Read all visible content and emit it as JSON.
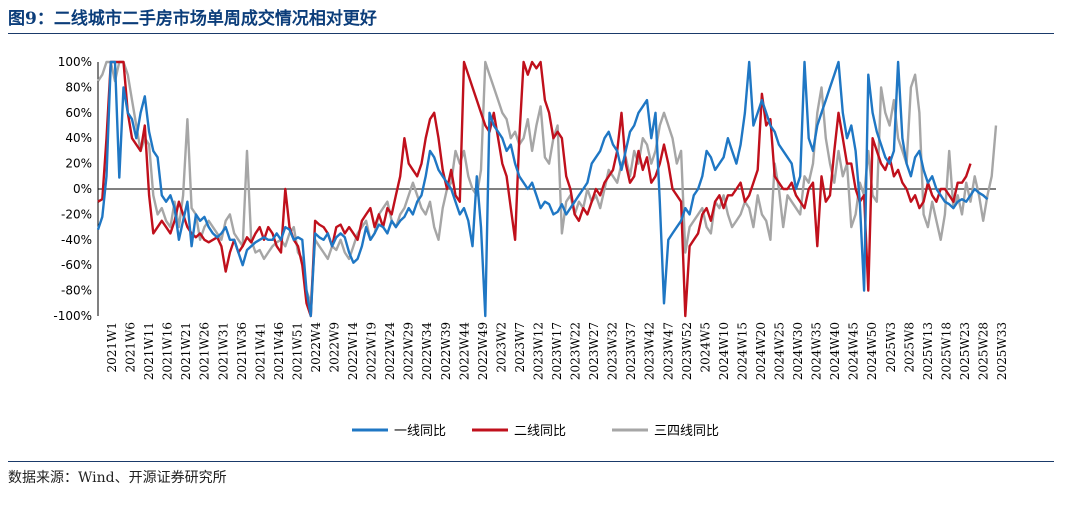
{
  "title": "图9：二线城市二手房市场单周成交情况相对更好",
  "source": "数据来源：Wind、开源证券研究所",
  "chart_data": {
    "type": "line",
    "ylim": [
      -100,
      100
    ],
    "yticks": [
      -100,
      -80,
      -60,
      -40,
      -20,
      0,
      20,
      40,
      60,
      80,
      100
    ],
    "ytick_labels": [
      "-100%",
      "-80%",
      "-60%",
      "-40%",
      "-20%",
      "0%",
      "20%",
      "40%",
      "60%",
      "80%",
      "100%"
    ],
    "xtick_labels": [
      "2021W1",
      "2021W6",
      "2021W11",
      "2021W16",
      "2021W21",
      "2021W26",
      "2021W31",
      "2021W36",
      "2021W41",
      "2021W46",
      "2021W51",
      "2022W4",
      "2022W9",
      "2022W14",
      "2022W19",
      "2022W24",
      "2022W29",
      "2022W34",
      "2022W39",
      "2022W44",
      "2022W49",
      "2023W2",
      "2023W7",
      "2023W12",
      "2023W17",
      "2023W22",
      "2023W27",
      "2023W32",
      "2023W37",
      "2023W42",
      "2023W47",
      "2023W52",
      "2024W5",
      "2024W10",
      "2024W15",
      "2024W20",
      "2024W25",
      "2024W30",
      "2024W35",
      "2024W40",
      "2024W45",
      "2024W50",
      "2025W3",
      "2025W8",
      "2025W13",
      "2025W18",
      "2025W23",
      "2025W28",
      "2025W33"
    ],
    "legend_position": "bottom",
    "series": [
      {
        "name": "一线同比",
        "color": "#1f77c4",
        "values": [
          -32,
          -22,
          10,
          100,
          100,
          9,
          80,
          60,
          55,
          40,
          60,
          73,
          45,
          30,
          25,
          -5,
          -10,
          -5,
          -15,
          -40,
          -25,
          -10,
          -45,
          -20,
          -25,
          -22,
          -30,
          -35,
          -38,
          -35,
          -30,
          -40,
          -40,
          -50,
          -60,
          -48,
          -45,
          -42,
          -40,
          -38,
          -40,
          -40,
          -35,
          -40,
          -30,
          -32,
          -40,
          -38,
          -40,
          -80,
          -100,
          -35,
          -38,
          -40,
          -35,
          -45,
          -38,
          -35,
          -38,
          -50,
          -58,
          -55,
          -45,
          -30,
          -40,
          -35,
          -28,
          -30,
          -35,
          -25,
          -30,
          -25,
          -22,
          -15,
          -20,
          -10,
          -5,
          10,
          30,
          25,
          15,
          10,
          5,
          0,
          -10,
          -20,
          -15,
          -25,
          -45,
          10,
          -30,
          -100,
          60,
          50,
          45,
          40,
          30,
          35,
          20,
          10,
          5,
          0,
          5,
          -5,
          -15,
          -10,
          -12,
          -20,
          -18,
          -12,
          -20,
          -15,
          -10,
          -5,
          0,
          5,
          20,
          25,
          30,
          40,
          45,
          35,
          30,
          15,
          30,
          45,
          50,
          60,
          65,
          70,
          40,
          60,
          -10,
          -90,
          -40,
          -35,
          -30,
          -25,
          -15,
          -20,
          -5,
          0,
          10,
          30,
          25,
          15,
          20,
          25,
          40,
          30,
          20,
          35,
          60,
          100,
          50,
          60,
          70,
          60,
          50,
          45,
          35,
          30,
          25,
          20,
          0,
          10,
          100,
          40,
          30,
          50,
          60,
          70,
          80,
          90,
          100,
          60,
          40,
          50,
          30,
          -10,
          -80,
          90,
          60,
          45,
          35,
          25,
          20,
          30,
          100,
          40,
          20,
          10,
          25,
          30,
          15,
          5,
          10,
          0,
          -5,
          -10,
          -12,
          -15,
          -10,
          -8,
          -10,
          -5,
          0,
          -3,
          -5,
          -8
        ],
        "values_note": ""
      },
      {
        "name": "二线同比",
        "color": "#c0101c",
        "values": [
          -10,
          -8,
          40,
          100,
          100,
          100,
          100,
          60,
          40,
          35,
          30,
          50,
          -5,
          -35,
          -30,
          -25,
          -30,
          -35,
          -25,
          -10,
          -20,
          -30,
          -35,
          -38,
          -35,
          -40,
          -42,
          -40,
          -38,
          -45,
          -65,
          -50,
          -40,
          -50,
          -45,
          -38,
          -42,
          -35,
          -30,
          -40,
          -30,
          -35,
          -45,
          -50,
          0,
          -30,
          -40,
          -45,
          -60,
          -90,
          -100,
          -25,
          -28,
          -30,
          -35,
          -45,
          -30,
          -28,
          -35,
          -30,
          -35,
          -40,
          -25,
          -20,
          -15,
          -30,
          -20,
          -30,
          -15,
          -20,
          -5,
          10,
          40,
          20,
          15,
          10,
          20,
          40,
          55,
          60,
          40,
          15,
          0,
          15,
          -5,
          -10,
          100,
          90,
          80,
          70,
          60,
          50,
          45,
          60,
          40,
          20,
          10,
          -15,
          -40,
          40,
          100,
          90,
          100,
          95,
          100,
          70,
          60,
          40,
          45,
          40,
          10,
          0,
          -20,
          -25,
          -15,
          -20,
          -10,
          0,
          -5,
          5,
          10,
          15,
          30,
          60,
          20,
          5,
          10,
          30,
          15,
          25,
          5,
          10,
          20,
          35,
          20,
          0,
          -5,
          -10,
          -100,
          -45,
          -40,
          -35,
          -20,
          -15,
          -25,
          -10,
          -5,
          -15,
          -5,
          -5,
          0,
          5,
          -10,
          -5,
          5,
          15,
          75,
          50,
          55,
          10,
          5,
          0,
          0,
          5,
          -5,
          -10,
          -15,
          0,
          5,
          -45,
          10,
          -10,
          -5,
          30,
          60,
          40,
          20,
          20,
          0,
          -10,
          -5,
          -80,
          40,
          30,
          20,
          15,
          25,
          10,
          15,
          5,
          0,
          -10,
          -5,
          -15,
          -10,
          5,
          -5,
          -10,
          0,
          0,
          -5,
          -10,
          5,
          5,
          10,
          20
        ],
        "values_note": ""
      },
      {
        "name": "三四线同比",
        "color": "#a6a6a6",
        "values": [
          85,
          90,
          100,
          100,
          85,
          100,
          100,
          90,
          70,
          50,
          30,
          40,
          35,
          -5,
          -20,
          -15,
          -25,
          -30,
          -10,
          -30,
          -5,
          55,
          -15,
          -20,
          -40,
          -30,
          -25,
          -30,
          -35,
          -40,
          -25,
          -20,
          -35,
          -40,
          -45,
          30,
          -40,
          -50,
          -48,
          -55,
          -50,
          -45,
          -42,
          -40,
          -45,
          -35,
          -30,
          -50,
          -55,
          -80,
          -90,
          -40,
          -45,
          -50,
          -55,
          -45,
          -48,
          -40,
          -50,
          -55,
          -45,
          -35,
          -30,
          -25,
          -40,
          -35,
          -20,
          -15,
          -10,
          -25,
          -30,
          -20,
          -15,
          -5,
          5,
          -5,
          -15,
          -20,
          -10,
          -30,
          -40,
          -15,
          0,
          5,
          30,
          20,
          30,
          10,
          0,
          -5,
          15,
          100,
          90,
          80,
          70,
          60,
          55,
          40,
          45,
          35,
          40,
          55,
          30,
          50,
          65,
          25,
          20,
          40,
          50,
          -35,
          -10,
          -5,
          -20,
          -10,
          -15,
          0,
          -10,
          -5,
          -15,
          0,
          15,
          10,
          5,
          20,
          25,
          10,
          30,
          20,
          40,
          35,
          20,
          30,
          50,
          60,
          50,
          40,
          20,
          30,
          -50,
          -30,
          -25,
          -20,
          -15,
          -30,
          -35,
          -10,
          -15,
          -5,
          -20,
          -30,
          -25,
          -20,
          -10,
          -15,
          -30,
          -5,
          -20,
          -25,
          -40,
          20,
          0,
          -30,
          -5,
          -10,
          -15,
          -20,
          10,
          5,
          20,
          60,
          80,
          40,
          20,
          5,
          30,
          10,
          20,
          -30,
          -20,
          5,
          -5,
          30,
          -5,
          -10,
          80,
          60,
          50,
          70,
          40,
          30,
          20,
          80,
          90,
          60,
          -20,
          -30,
          -10,
          -25,
          -40,
          -20,
          30,
          -15,
          -5,
          -20,
          5,
          -10,
          10,
          -5,
          -25,
          -5,
          10,
          50
        ],
        "values_note": ""
      }
    ]
  }
}
